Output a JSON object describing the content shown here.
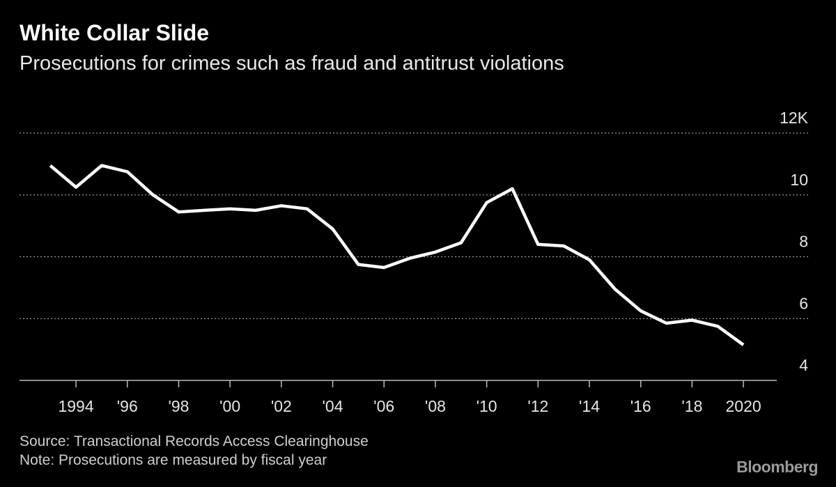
{
  "chart_data": {
    "type": "line",
    "title": "White Collar Slide",
    "subtitle": "Prosecutions for crimes such as fraud and antitrust violations",
    "x": [
      1993,
      1994,
      1995,
      1996,
      1997,
      1998,
      1999,
      2000,
      2001,
      2002,
      2003,
      2004,
      2005,
      2006,
      2007,
      2008,
      2009,
      2010,
      2011,
      2012,
      2013,
      2014,
      2015,
      2016,
      2017,
      2018,
      2019,
      2020
    ],
    "values": [
      10.95,
      10.25,
      10.95,
      10.75,
      10.0,
      9.45,
      9.5,
      9.55,
      9.5,
      9.65,
      9.55,
      8.9,
      7.75,
      7.65,
      7.95,
      8.15,
      8.45,
      9.75,
      10.2,
      8.4,
      8.35,
      7.9,
      6.95,
      6.25,
      5.85,
      5.95,
      5.75,
      5.15
    ],
    "color": "#ffffff",
    "xlim": [
      1991.8,
      2021.3
    ],
    "xticks": [
      1994,
      {
        "value": 1996,
        "label": "'96"
      },
      {
        "value": 1998,
        "label": "'98"
      },
      {
        "value": 2000,
        "label": "'00"
      },
      {
        "value": 2002,
        "label": "'02"
      },
      {
        "value": 2004,
        "label": "'04"
      },
      {
        "value": 2006,
        "label": "'06"
      },
      {
        "value": 2008,
        "label": "'08"
      },
      {
        "value": 2010,
        "label": "'10"
      },
      {
        "value": 2012,
        "label": "'12"
      },
      {
        "value": 2014,
        "label": "'14"
      },
      {
        "value": 2016,
        "label": "'16"
      },
      {
        "value": 2018,
        "label": "'18"
      },
      2020
    ],
    "ylim": [
      4,
      12
    ],
    "yticks": [
      4,
      6,
      8,
      10,
      {
        "value": 12,
        "label": "12K"
      }
    ],
    "grid": true,
    "source": "Source: Transactional Records Access Clearinghouse",
    "note": "Note: Prosecutions are measured by fiscal year",
    "brand": "Bloomberg"
  }
}
